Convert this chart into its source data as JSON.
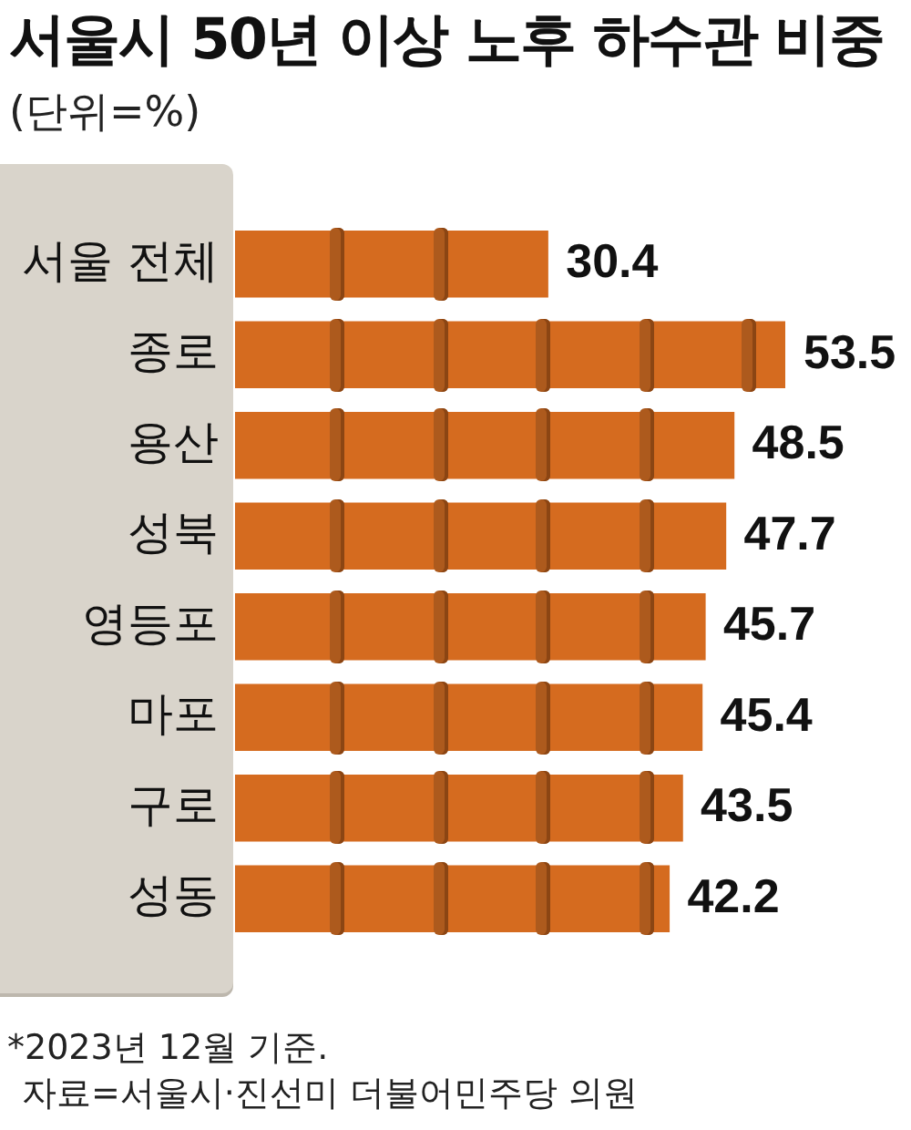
{
  "chart_data": {
    "type": "bar",
    "orientation": "horizontal",
    "title": "서울시 50년 이상 노후 하수관 비중",
    "subtitle": "(단위=%)",
    "categories": [
      "서울 전체",
      "종로",
      "용산",
      "성북",
      "영등포",
      "마포",
      "구로",
      "성동"
    ],
    "values": [
      30.4,
      53.5,
      48.5,
      47.7,
      45.7,
      45.4,
      43.5,
      42.2
    ],
    "color": "#d56b1f",
    "data_labels": true,
    "tick_labels": "y",
    "annotations": [
      "*2023년 12월 기준.",
      "자료=서울시·진선미 더불어민주당 의원"
    ]
  }
}
